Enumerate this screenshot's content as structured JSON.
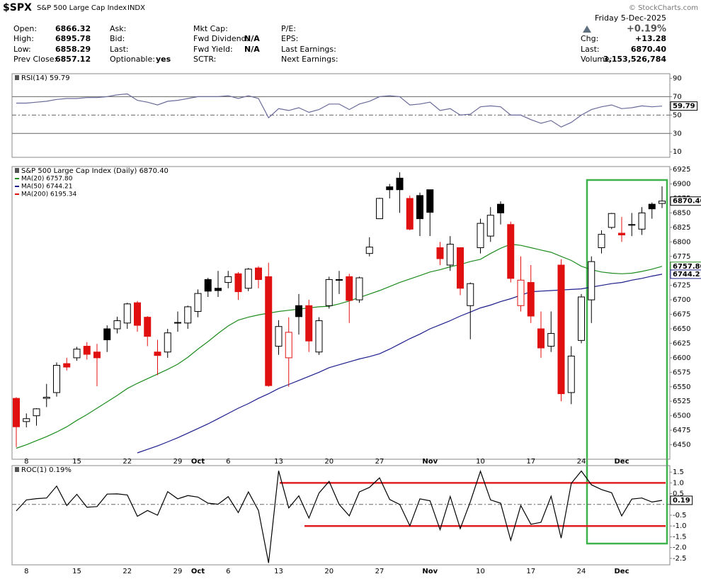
{
  "header": {
    "symbol": "$SPX",
    "name": "S&P 500 Large Cap Index",
    "exchange": "INDX",
    "copyright": "© StockCharts.com",
    "date": "Friday  5-Dec-2025",
    "change_pct": "+0.19%",
    "columns": [
      [
        {
          "label": "Open:",
          "value": "6866.32"
        },
        {
          "label": "High:",
          "value": "6895.78"
        },
        {
          "label": "Low:",
          "value": "6858.29"
        },
        {
          "label": "Prev Close:",
          "value": "6857.12"
        }
      ],
      [
        {
          "label": "Ask:"
        },
        {
          "label": "Bid:"
        },
        {
          "label": "Last:"
        },
        {
          "label": "Optionable:",
          "value": "yes"
        }
      ],
      [
        {
          "label": "Mkt Cap:"
        },
        {
          "label": "Fwd Dividend:",
          "value": "N/A"
        },
        {
          "label": "Fwd Yield:",
          "value": "N/A"
        },
        {
          "label": "SCTR:"
        }
      ],
      [
        {
          "label": "P/E:"
        },
        {
          "label": "EPS:"
        },
        {
          "label": "Last Earnings:"
        },
        {
          "label": "Next Earnings:"
        }
      ]
    ],
    "right": [
      {
        "label": "Chg:",
        "value": "+13.28"
      },
      {
        "label": "Last:",
        "value": "6870.40"
      },
      {
        "label": "Volume:",
        "value": "3,153,526,784"
      }
    ]
  },
  "chart_data": [
    {
      "type": "line",
      "title": "RSI(14) 59.79",
      "ylim": [
        4,
        95
      ],
      "yticks": [
        10,
        30,
        50,
        70,
        90
      ],
      "last_value_label": "59.79",
      "reference_lines": [
        {
          "value": 70
        },
        {
          "value": 50,
          "dash": true
        },
        {
          "value": 30
        }
      ],
      "series": [
        {
          "name": "RSI(14)",
          "color": "#6a6a9a",
          "values": [
            63,
            63,
            64,
            65,
            67,
            68,
            68,
            69,
            69,
            70,
            72,
            73,
            66,
            64,
            61,
            65,
            66,
            68,
            70,
            70,
            70,
            71,
            68,
            71,
            68,
            47,
            57,
            55,
            58,
            53,
            56,
            62,
            62,
            56,
            62,
            65,
            70,
            71,
            70,
            61,
            62,
            64,
            55,
            57,
            50,
            51,
            59,
            60,
            59,
            50,
            50,
            45,
            41,
            44,
            37,
            42,
            50,
            56,
            59,
            61,
            57,
            58,
            60,
            59,
            59.79
          ]
        }
      ]
    },
    {
      "type": "candlestick",
      "title": "S&P 500 Large Cap Index (Daily) 6870.40",
      "ylim": [
        6425,
        6930
      ],
      "yticks": [
        6450,
        6475,
        6500,
        6525,
        6550,
        6575,
        6600,
        6625,
        6650,
        6675,
        6700,
        6725,
        6750,
        6775,
        6800,
        6825,
        6850,
        6875,
        6900,
        6925
      ],
      "last_value_label": "6870.40",
      "up_color": "#000000",
      "down_color": "#e01010",
      "categories": [
        null,
        "8",
        null,
        null,
        null,
        null,
        "15",
        null,
        null,
        null,
        null,
        "22",
        null,
        null,
        null,
        null,
        "29",
        null,
        "Oct",
        null,
        null,
        "6",
        null,
        null,
        null,
        null,
        "13",
        null,
        null,
        null,
        null,
        "20",
        null,
        null,
        null,
        null,
        "27",
        null,
        null,
        null,
        null,
        "Nov",
        null,
        null,
        null,
        null,
        "10",
        null,
        null,
        null,
        null,
        "17",
        null,
        null,
        null,
        null,
        "24",
        null,
        null,
        null,
        "Dec",
        null,
        null,
        null,
        null
      ],
      "open": [
        6530,
        6490,
        6500,
        6530,
        6540,
        6590,
        6600,
        6620,
        6610,
        6650,
        6650,
        6660,
        6695,
        6670,
        6610,
        6610,
        6660,
        6660,
        6680,
        6735,
        6720,
        6730,
        6745,
        6720,
        6755,
        6740,
        6620,
        6600,
        6690,
        6690,
        6610,
        6690,
        6735,
        6740,
        6700,
        6780,
        6840,
        6895,
        6910,
        6875,
        6880,
        6890,
        6790,
        6760,
        6790,
        6690,
        6790,
        6810,
        6865,
        6830,
        6690,
        6730,
        6650,
        6620,
        6760,
        6540,
        6630,
        6700,
        6790,
        6825,
        6815,
        6830,
        6822,
        6865,
        6866.32
      ],
      "high": [
        6532,
        6504,
        6513,
        6555,
        6592,
        6600,
        6619,
        6627,
        6624,
        6656,
        6671,
        6695,
        6698,
        6672,
        6631,
        6650,
        6680,
        6690,
        6718,
        6738,
        6750,
        6750,
        6748,
        6755,
        6758,
        6764,
        6665,
        6670,
        6710,
        6700,
        6670,
        6740,
        6750,
        6745,
        6740,
        6808,
        6876,
        6900,
        6920,
        6880,
        6885,
        6890,
        6800,
        6810,
        6790,
        6730,
        6840,
        6860,
        6870,
        6835,
        6775,
        6760,
        6680,
        6680,
        6770,
        6620,
        6710,
        6775,
        6820,
        6850,
        6843,
        6850,
        6860,
        6868,
        6895.78
      ],
      "low": [
        6446,
        6480,
        6483,
        6515,
        6533,
        6578,
        6595,
        6597,
        6551,
        6610,
        6642,
        6650,
        6645,
        6620,
        6570,
        6600,
        6645,
        6650,
        6670,
        6705,
        6705,
        6720,
        6700,
        6715,
        6720,
        6550,
        6605,
        6550,
        6640,
        6610,
        6605,
        6685,
        6710,
        6660,
        6695,
        6775,
        6840,
        6875,
        6850,
        6820,
        6810,
        6810,
        6760,
        6750,
        6708,
        6632,
        6780,
        6800,
        6830,
        6730,
        6680,
        6660,
        6600,
        6610,
        6525,
        6520,
        6625,
        6660,
        6780,
        6822,
        6800,
        6810,
        6812,
        6840,
        6858.29
      ],
      "close": [
        6481,
        6495,
        6512,
        6532,
        6587,
        6584,
        6615,
        6606,
        6600,
        6631,
        6664,
        6693,
        6656,
        6637,
        6604,
        6643,
        6661,
        6688,
        6711,
        6715,
        6716,
        6740,
        6714,
        6753,
        6735,
        6552,
        6654,
        6644,
        6671,
        6629,
        6664,
        6735,
        6735,
        6699,
        6738,
        6791,
        6875,
        6890,
        6890,
        6822,
        6840,
        6851,
        6771,
        6796,
        6720,
        6728,
        6832,
        6846,
        6850,
        6737,
        6734,
        6672,
        6617,
        6642,
        6538,
        6603,
        6705,
        6766,
        6813,
        6849,
        6812,
        6829,
        6850,
        6857,
        6870.4
      ],
      "series": [
        {
          "name": "MA(20) 6757.80",
          "color": "#1e8c1e",
          "last_value_label": "6757.80",
          "values": [
            6444,
            6450,
            6457,
            6464,
            6472,
            6481,
            6492,
            6502,
            6513,
            6524,
            6535,
            6547,
            6556,
            6564,
            6572,
            6580,
            6589,
            6601,
            6615,
            6628,
            6642,
            6655,
            6665,
            6670,
            6674,
            6677,
            6680,
            6682,
            6684,
            6686,
            6688,
            6689,
            6693,
            6698,
            6704,
            6710,
            6716,
            6723,
            6730,
            6736,
            6742,
            6748,
            6752,
            6757,
            6761,
            6766,
            6770,
            6780,
            6789,
            6796,
            6794,
            6790,
            6786,
            6782,
            6775,
            6768,
            6758,
            6752,
            6748,
            6746,
            6745,
            6746,
            6749,
            6753,
            6757.8
          ]
        },
        {
          "name": "MA(50) 6744.21",
          "color": "#1c1c8c",
          "last_value_label": "6744.21",
          "values": [
            null,
            null,
            null,
            null,
            null,
            null,
            null,
            null,
            null,
            null,
            null,
            null,
            6436,
            6442,
            6448,
            6455,
            6462,
            6470,
            6478,
            6486,
            6495,
            6504,
            6513,
            6521,
            6530,
            6538,
            6547,
            6554,
            6561,
            6568,
            6575,
            6583,
            6588,
            6593,
            6598,
            6602,
            6607,
            6615,
            6624,
            6633,
            6641,
            6650,
            6657,
            6664,
            6672,
            6679,
            6686,
            6691,
            6697,
            6702,
            6708,
            6714,
            6715,
            6716,
            6717,
            6718,
            6719,
            6722,
            6725,
            6728,
            6730,
            6734,
            6737,
            6741,
            6744.21
          ]
        },
        {
          "name": "MA(200) 6195.34",
          "color": "#e01010"
        }
      ]
    },
    {
      "type": "line",
      "title": "ROC(1) 0.19%",
      "ylim": [
        -2.8,
        1.8
      ],
      "last_value_label": "0.19",
      "yticks": [
        {
          "value": -2.5,
          "label": "-2.5"
        },
        {
          "value": -2,
          "label": "-2.0"
        },
        {
          "value": -1.5,
          "label": "-1.5"
        },
        {
          "value": -1,
          "label": "-1.0"
        },
        {
          "value": -0.5,
          "label": "-0.5"
        },
        {
          "value": 0.5,
          "label": "0.5"
        },
        {
          "value": 1,
          "label": "1.0"
        },
        {
          "value": 1.5,
          "label": "1.5"
        }
      ],
      "reference_lines": [
        {
          "value": 0,
          "dash": true
        },
        {
          "value": 1,
          "color": "#e02020"
        },
        {
          "value": -1,
          "color": "#e02020"
        }
      ],
      "series": [
        {
          "name": "ROC(1)",
          "color": "#000000",
          "values": [
            -0.3,
            0.21,
            0.27,
            0.3,
            0.85,
            -0.05,
            0.47,
            -0.13,
            -0.1,
            0.48,
            0.49,
            0.44,
            -0.55,
            -0.28,
            -0.5,
            0.59,
            0.26,
            0.41,
            0.34,
            0.06,
            0.01,
            0.36,
            -0.38,
            0.58,
            -0.28,
            -2.71,
            1.56,
            -0.16,
            0.4,
            -0.63,
            0.53,
            1.07,
            0,
            -0.53,
            0.58,
            0.79,
            1.23,
            0.23,
            0,
            -0.99,
            0.26,
            0.17,
            -1.17,
            0.37,
            -1.12,
            0.13,
            1.54,
            0.21,
            0.06,
            -1.66,
            -0.05,
            -0.92,
            -0.83,
            0.38,
            -1.56,
            0.98,
            1.55,
            0.91,
            0.69,
            0.54,
            -0.53,
            0.25,
            0.3,
            0.11,
            0.19
          ]
        }
      ]
    }
  ]
}
